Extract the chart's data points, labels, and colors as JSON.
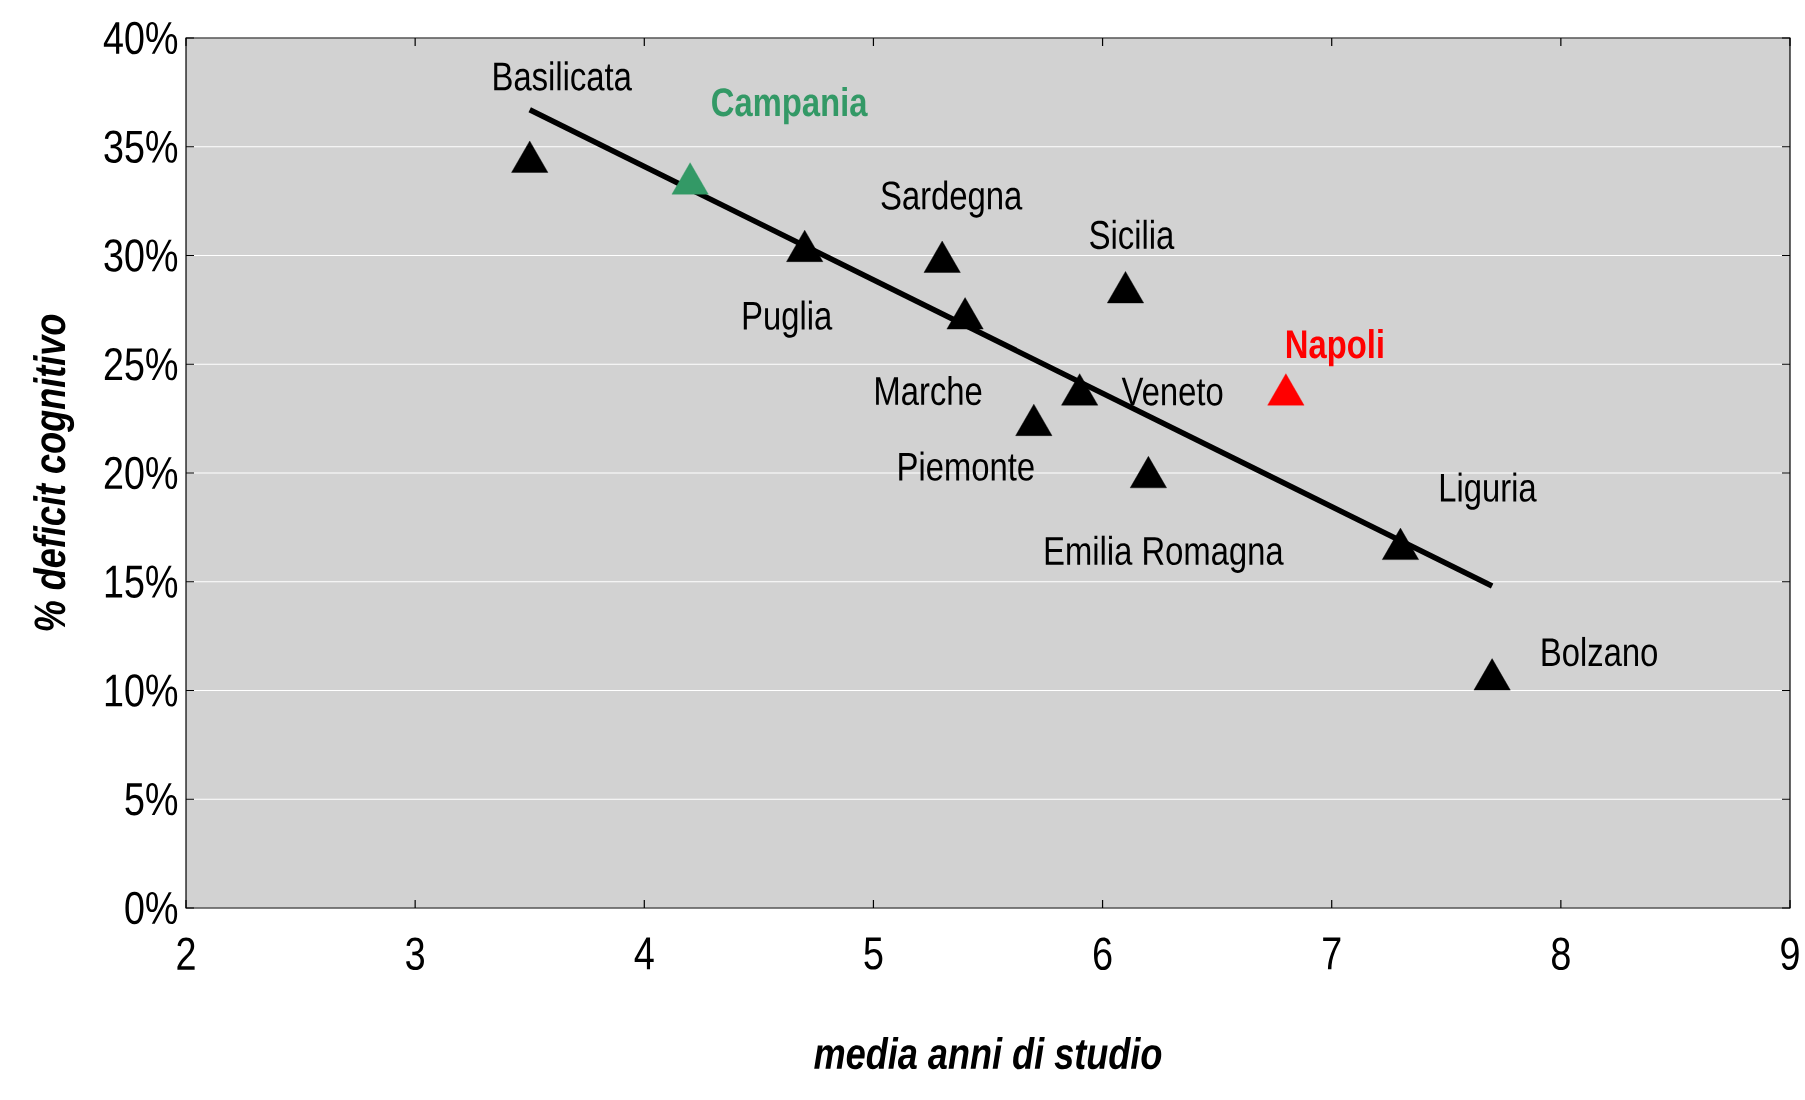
{
  "chart_data": {
    "type": "scatter",
    "xlabel": "media anni di studio",
    "ylabel": "% deficit cognitivo",
    "xlim": [
      2,
      9
    ],
    "xticks": [
      2,
      3,
      4,
      5,
      6,
      7,
      8,
      9
    ],
    "ylim": [
      0,
      40
    ],
    "yticks": [
      {
        "value": 0,
        "label": "0%"
      },
      {
        "value": 5,
        "label": "5%"
      },
      {
        "value": 10,
        "label": "10%"
      },
      {
        "value": 15,
        "label": "15%"
      },
      {
        "value": 20,
        "label": "20%"
      },
      {
        "value": 25,
        "label": "25%"
      },
      {
        "value": 30,
        "label": "30%"
      },
      {
        "value": 35,
        "label": "35%"
      },
      {
        "value": 40,
        "label": "40%"
      }
    ],
    "grid": "y",
    "marker": "triangle",
    "series": [
      {
        "color": "#000000",
        "x": [
          3.5,
          4.2,
          4.7,
          5.3,
          5.4,
          6.1,
          5.9,
          5.7,
          6.2,
          6.8,
          7.3,
          7.7
        ],
        "values": [
          34.3,
          33.3,
          30.2,
          29.7,
          27.1,
          28.3,
          23.6,
          22.2,
          19.8,
          23.6,
          16.5,
          10.5
        ],
        "colors": [
          "#000000",
          "#339966",
          "#000000",
          "#000000",
          "#000000",
          "#000000",
          "#000000",
          "#000000",
          "#000000",
          "#ff0000",
          "#000000",
          "#000000"
        ]
      },
      {
        "type": "line",
        "color": "#000000",
        "marker": "none",
        "line_style": "solid",
        "x": [
          3.5,
          7.7
        ],
        "values": [
          36.7,
          14.8
        ]
      }
    ],
    "annotations": [
      "Basilicata",
      "Campania",
      "Puglia",
      "Sardegna",
      "Marche",
      "Sicilia",
      "Veneto",
      "Piemonte",
      "Emilia  Romagna",
      "Napoli",
      "Liguria",
      "Bolzano"
    ]
  }
}
